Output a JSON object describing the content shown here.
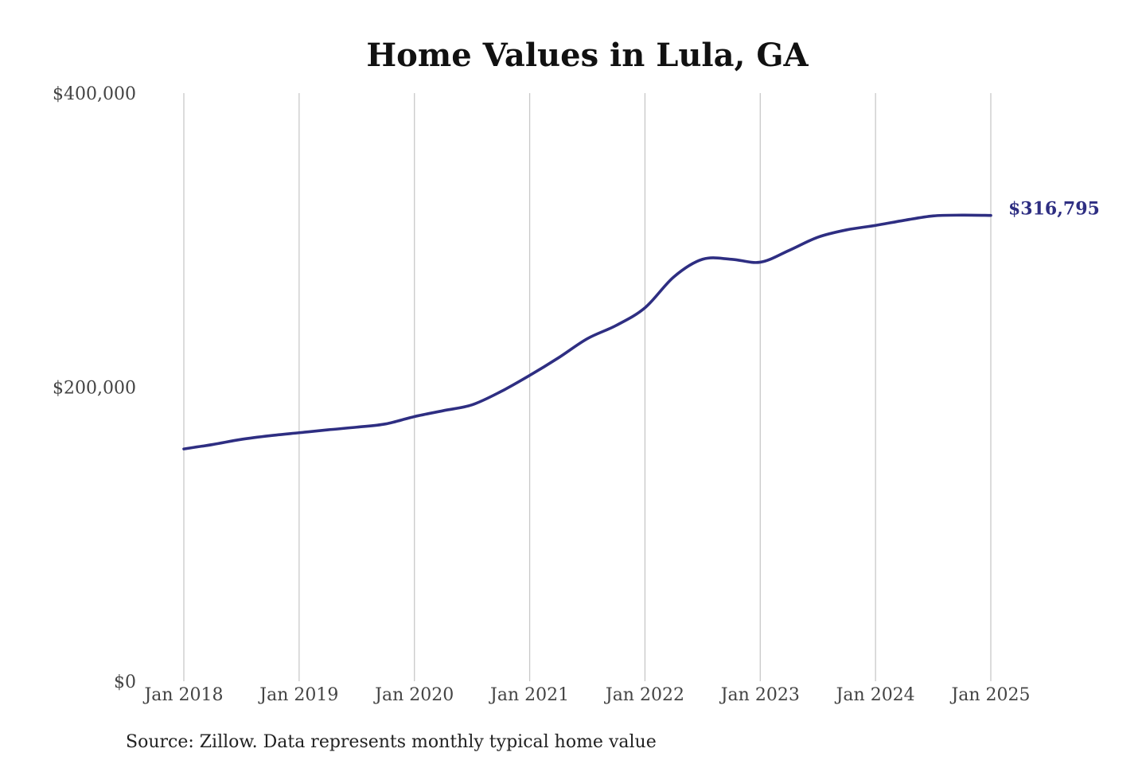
{
  "chart_data": {
    "type": "line",
    "title": "Home Values in Lula, GA",
    "source": "Source: Zillow. Data represents monthly typical home value",
    "ylim": [
      0,
      400000
    ],
    "yticks": [
      {
        "value": 0,
        "label": "$0"
      },
      {
        "value": 200000,
        "label": "$200,000"
      },
      {
        "value": 400000,
        "label": "$400,000"
      }
    ],
    "xlim": [
      "2018-01",
      "2025-01"
    ],
    "xticks": [
      {
        "value": "2018-01",
        "label": "Jan 2018"
      },
      {
        "value": "2019-01",
        "label": "Jan 2019"
      },
      {
        "value": "2020-01",
        "label": "Jan 2020"
      },
      {
        "value": "2021-01",
        "label": "Jan 2021"
      },
      {
        "value": "2022-01",
        "label": "Jan 2022"
      },
      {
        "value": "2023-01",
        "label": "Jan 2023"
      },
      {
        "value": "2024-01",
        "label": "Jan 2024"
      },
      {
        "value": "2025-01",
        "label": "Jan 2025"
      }
    ],
    "grid": {
      "vertical": true,
      "horizontal": false
    },
    "line_color": "#2e2e82",
    "series": [
      {
        "x": [
          "2018-01",
          "2018-04",
          "2018-07",
          "2018-10",
          "2019-01",
          "2019-04",
          "2019-07",
          "2019-10",
          "2020-01",
          "2020-04",
          "2020-07",
          "2020-10",
          "2021-01",
          "2021-04",
          "2021-07",
          "2021-10",
          "2022-01",
          "2022-04",
          "2022-07",
          "2022-10",
          "2023-01",
          "2023-04",
          "2023-07",
          "2023-10",
          "2024-01",
          "2024-04",
          "2024-07",
          "2024-10",
          "2025-01"
        ],
        "y": [
          158000,
          161000,
          164500,
          167000,
          169000,
          171000,
          172800,
          175000,
          180000,
          184000,
          188000,
          197000,
          208000,
          220000,
          233000,
          242000,
          254000,
          275000,
          287000,
          287000,
          285000,
          293000,
          302000,
          307000,
          310000,
          313500,
          316500,
          317000,
          316795
        ]
      }
    ],
    "end_label": "$316,795"
  }
}
